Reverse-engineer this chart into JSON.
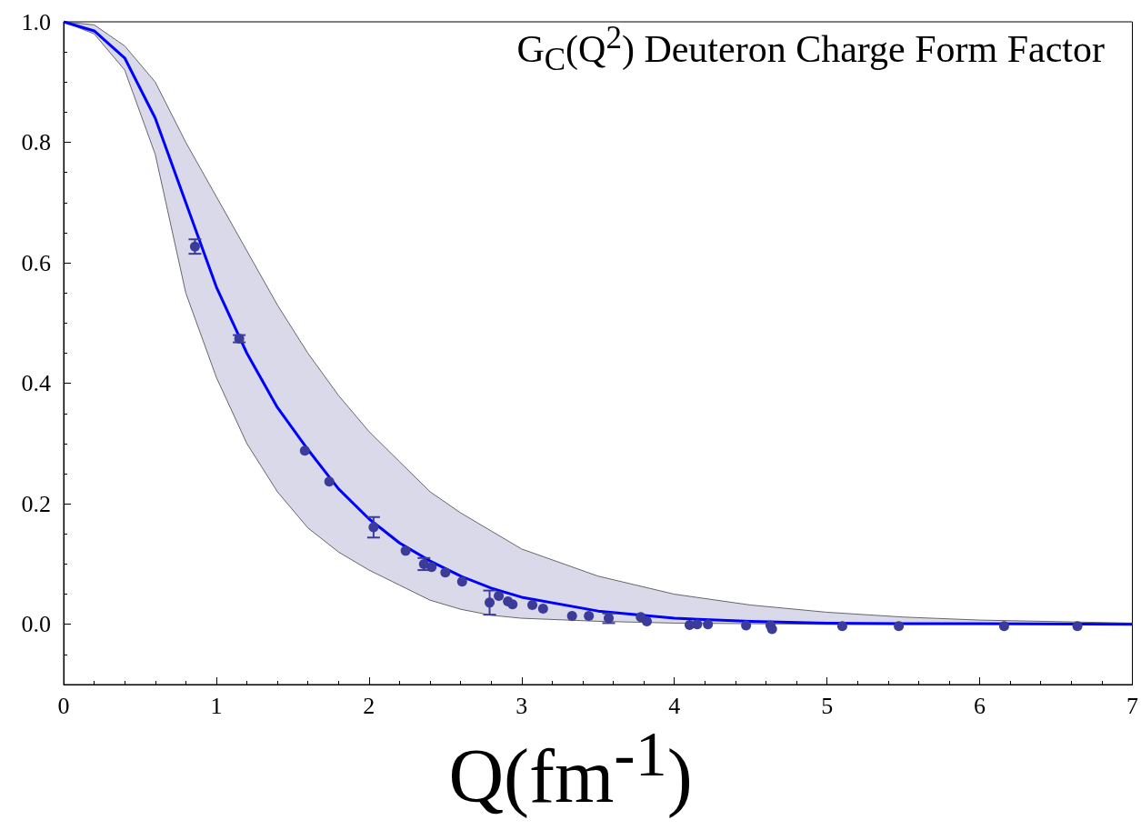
{
  "chart_data": {
    "type": "line",
    "title": "G$_{C}$(Q$^{2}$) Deuteron Charge Form Factor",
    "xlabel": "Q(fm$^{-1}$)",
    "xlim": [
      0,
      7
    ],
    "xticks": [
      0,
      1,
      2,
      3,
      4,
      5,
      6,
      7
    ],
    "ylim": [
      -0.1,
      1.0
    ],
    "yticks": [
      {
        "value": 0,
        "label": "0.0"
      },
      0.2,
      0.4,
      0.6,
      0.8,
      {
        "value": 1,
        "label": "1.0"
      }
    ],
    "grid": false,
    "series": [
      {
        "color": "#0000ff",
        "marker": "none",
        "line_style": "solid",
        "x": [
          0,
          0.2,
          0.4,
          0.6,
          0.8,
          1.0,
          1.2,
          1.4,
          1.6,
          1.8,
          2.0,
          2.2,
          2.4,
          2.6,
          2.8,
          3.0,
          3.5,
          4.0,
          4.5,
          5.0,
          5.5,
          6.0,
          7.0
        ],
        "values": [
          1,
          0.985,
          0.94,
          0.84,
          0.7,
          0.56,
          0.45,
          0.36,
          0.29,
          0.225,
          0.175,
          0.135,
          0.105,
          0.08,
          0.06,
          0.045,
          0.022,
          0.01,
          0.005,
          0.002,
          0.001,
          0.001,
          0
        ],
        "upper": [
          1,
          0.995,
          0.96,
          0.9,
          0.8,
          0.71,
          0.62,
          0.53,
          0.45,
          0.38,
          0.32,
          0.27,
          0.22,
          0.185,
          0.155,
          0.125,
          0.08,
          0.05,
          0.032,
          0.02,
          0.012,
          0.007,
          0.002
        ],
        "lower": [
          1,
          0.98,
          0.92,
          0.78,
          0.55,
          0.41,
          0.3,
          0.22,
          0.16,
          0.12,
          0.09,
          0.065,
          0.04,
          0.025,
          0.015,
          0.01,
          0.005,
          0.002,
          0.001,
          0,
          0,
          0,
          0
        ]
      },
      {
        "type": "scatter",
        "color": "#3b3b99",
        "marker": "circle",
        "x": [
          0.86,
          1.15,
          1.58,
          1.74,
          2.03,
          2.24,
          2.36,
          2.41,
          2.5,
          2.61,
          2.79,
          2.85,
          2.91,
          2.94,
          3.07,
          3.14,
          3.33,
          3.44,
          3.57,
          3.78,
          3.82,
          4.1,
          4.15,
          4.22,
          4.47,
          4.63,
          4.64,
          5.1,
          5.47,
          6.16,
          6.64
        ],
        "values": [
          0.627,
          0.474,
          0.288,
          0.237,
          0.161,
          0.122,
          0.1,
          0.095,
          0.086,
          0.071,
          0.036,
          0.047,
          0.038,
          0.033,
          0.032,
          0.026,
          0.014,
          0.014,
          0.01,
          0.012,
          0.005,
          -0.001,
          0,
          0,
          -0.002,
          -0.002,
          -0.008,
          -0.003,
          -0.003,
          -0.003,
          -0.003
        ],
        "errors": [
          0.012,
          0.006,
          null,
          null,
          0.017,
          null,
          0.01,
          null,
          null,
          null,
          0.02,
          null,
          null,
          null,
          null,
          null,
          null,
          null,
          0.008,
          null,
          null,
          null,
          null,
          null,
          null,
          null,
          null,
          null,
          null,
          null,
          null
        ]
      }
    ]
  }
}
